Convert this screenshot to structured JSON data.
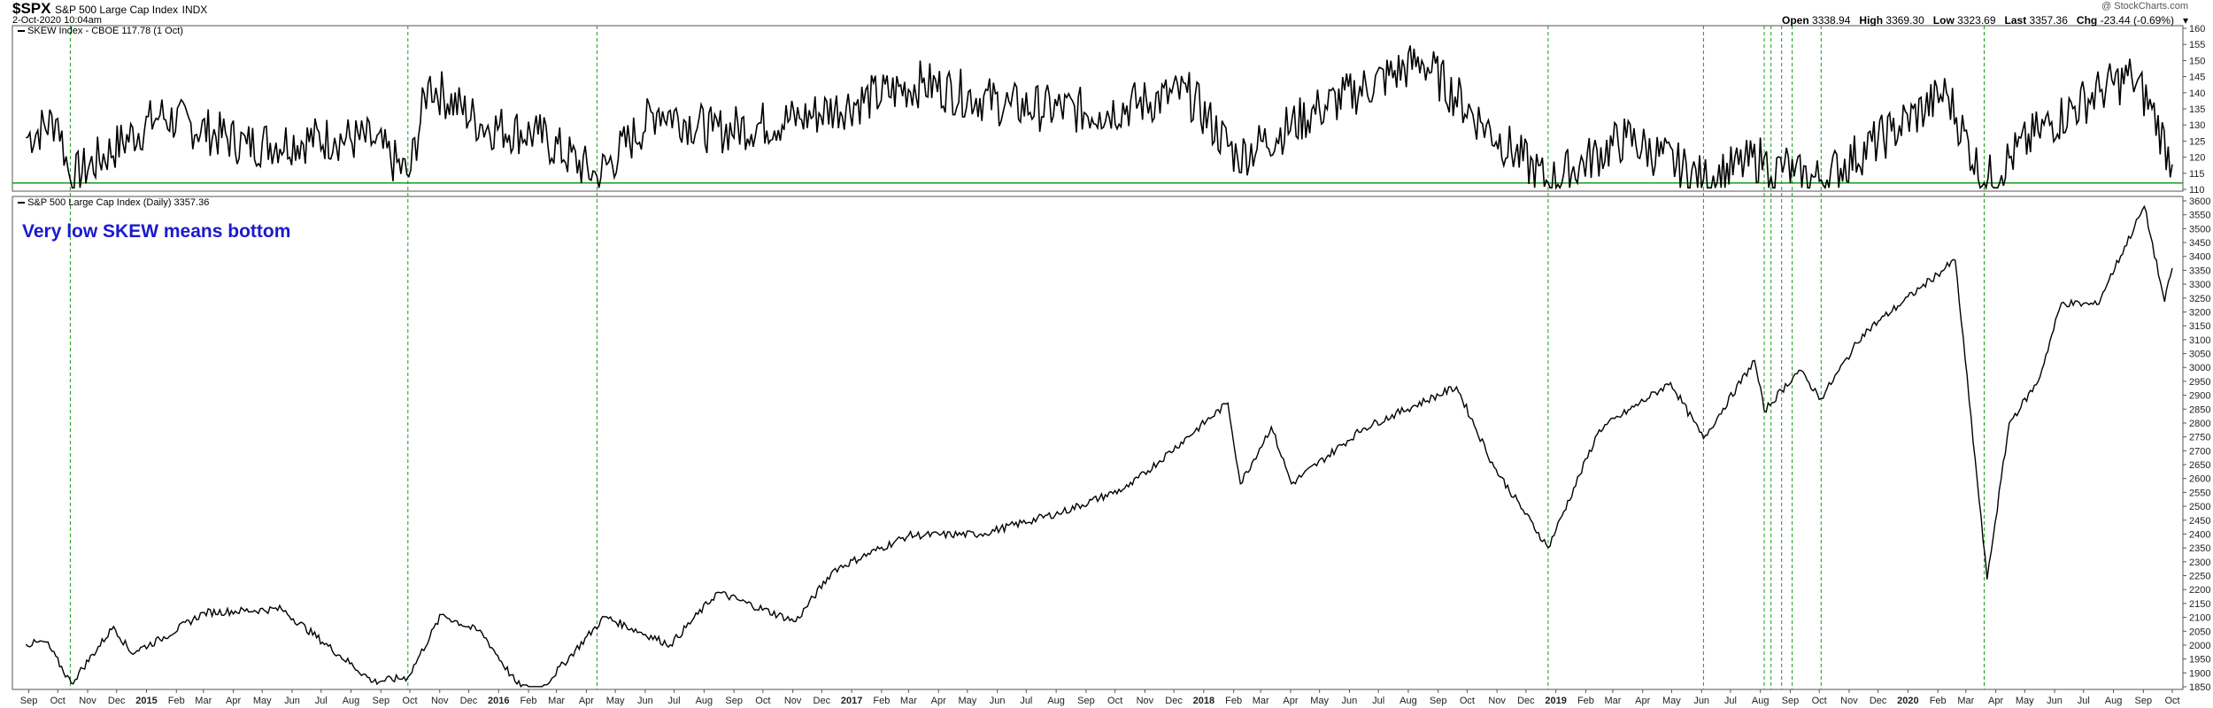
{
  "header": {
    "symbol": "$SPX",
    "name": "S&P 500 Large Cap Index",
    "exchange": "INDX",
    "datetime": "2-Oct-2020 10:04am",
    "credit": "@ StockCharts.com",
    "stats": [
      {
        "label": "Open",
        "value": "3338.94"
      },
      {
        "label": "High",
        "value": "3369.30"
      },
      {
        "label": "Low",
        "value": "3323.69"
      },
      {
        "label": "Last",
        "value": "3357.36"
      },
      {
        "label": "Chg",
        "value": "-23.44 (-0.69%)"
      }
    ],
    "chg_arrow": "down-triangle-icon"
  },
  "annotation": "Very low SKEW means bottom",
  "colors": {
    "price_line": "#000000",
    "marker_line": "#1a9a1a",
    "threshold_line": "#1a9a1a",
    "annotation": "#1a1acd"
  },
  "chart_data": [
    {
      "type": "line",
      "legend": "SKEW Index - CBOE 117.78 (1 Oct)",
      "ylim": [
        110,
        160
      ],
      "y_ticks": [
        110,
        115,
        120,
        125,
        130,
        135,
        140,
        145,
        150,
        155,
        160
      ],
      "threshold": 112,
      "series": [
        {
          "x": [
            "2014-08-29",
            "2014-10-01",
            "2014-10-14",
            "2015-01-15",
            "2015-04-15",
            "2015-07-15",
            "2015-08-24",
            "2015-09-30",
            "2015-10-20",
            "2015-12-15",
            "2016-02-11",
            "2016-04-12",
            "2016-06-15",
            "2016-08-10",
            "2016-11-08",
            "2017-03-15",
            "2017-06-15",
            "2017-09-15",
            "2017-12-15",
            "2018-02-05",
            "2018-05-01",
            "2018-08-15",
            "2018-10-15",
            "2018-12-24",
            "2019-03-15",
            "2019-06-03",
            "2019-08-05",
            "2019-08-12",
            "2019-08-26",
            "2019-09-05",
            "2019-10-03",
            "2019-12-15",
            "2020-02-10",
            "2020-03-20",
            "2020-05-15",
            "2020-07-20",
            "2020-08-20",
            "2020-09-10",
            "2020-10-01"
          ],
          "values": [
            126,
            132,
            113,
            133,
            124,
            126,
            125,
            114,
            143,
            130,
            127,
            114,
            135,
            128,
            132,
            143,
            136,
            134,
            140,
            120,
            135,
            150,
            131,
            112,
            126,
            113,
            120,
            114,
            118,
            114,
            113,
            128,
            140,
            112,
            128,
            141,
            145,
            135,
            117.78
          ]
        }
      ]
    },
    {
      "type": "line",
      "legend": "S&P 500 Large Cap Index (Daily) 3357.36",
      "ylim": [
        1850,
        3600
      ],
      "y_ticks": [
        1850,
        1900,
        1950,
        2000,
        2050,
        2100,
        2150,
        2200,
        2250,
        2300,
        2350,
        2400,
        2450,
        2500,
        2550,
        2600,
        2650,
        2700,
        2750,
        2800,
        2850,
        2900,
        2950,
        3000,
        3050,
        3100,
        3150,
        3200,
        3250,
        3300,
        3350,
        3400,
        3450,
        3500,
        3550,
        3600
      ],
      "series": [
        {
          "x": [
            "2014-08-29",
            "2014-09-19",
            "2014-10-15",
            "2014-11-28",
            "2014-12-16",
            "2015-01-15",
            "2015-03-02",
            "2015-05-21",
            "2015-08-24",
            "2015-09-29",
            "2015-11-03",
            "2015-12-15",
            "2016-01-20",
            "2016-02-11",
            "2016-04-20",
            "2016-06-27",
            "2016-08-15",
            "2016-11-04",
            "2016-12-13",
            "2017-03-01",
            "2017-05-15",
            "2017-08-08",
            "2017-10-15",
            "2018-01-26",
            "2018-02-08",
            "2018-03-12",
            "2018-04-02",
            "2018-06-15",
            "2018-09-20",
            "2018-10-29",
            "2018-12-24",
            "2019-02-15",
            "2019-04-30",
            "2019-06-03",
            "2019-07-26",
            "2019-08-05",
            "2019-09-10",
            "2019-10-03",
            "2019-11-15",
            "2020-01-15",
            "2020-02-19",
            "2020-03-23",
            "2020-04-15",
            "2020-05-15",
            "2020-06-08",
            "2020-07-15",
            "2020-09-02",
            "2020-09-23",
            "2020-10-01"
          ],
          "values": [
            2003,
            2011,
            1862,
            2067,
            1972,
            2020,
            2117,
            2130,
            1868,
            1884,
            2110,
            2043,
            1860,
            1829,
            2102,
            2001,
            2190,
            2085,
            2270,
            2395,
            2400,
            2480,
            2570,
            2872,
            2581,
            2786,
            2581,
            2780,
            2930,
            2641,
            2351,
            2775,
            2945,
            2744,
            3025,
            2844,
            2990,
            2888,
            3120,
            3290,
            3386,
            2237,
            2800,
            2950,
            3232,
            3226,
            3580,
            3237,
            3357.36
          ]
        }
      ]
    }
  ],
  "x_axis": {
    "labels": [
      {
        "t": "Sep",
        "d": "2014-09-01"
      },
      {
        "t": "Oct",
        "d": "2014-10-01"
      },
      {
        "t": "Nov",
        "d": "2014-11-01"
      },
      {
        "t": "Dec",
        "d": "2014-12-01"
      },
      {
        "t": "2015",
        "d": "2015-01-01",
        "year": true
      },
      {
        "t": "Feb",
        "d": "2015-02-01"
      },
      {
        "t": "Mar",
        "d": "2015-03-01"
      },
      {
        "t": "Apr",
        "d": "2015-04-01"
      },
      {
        "t": "May",
        "d": "2015-05-01"
      },
      {
        "t": "Jun",
        "d": "2015-06-01"
      },
      {
        "t": "Jul",
        "d": "2015-07-01"
      },
      {
        "t": "Aug",
        "d": "2015-08-01"
      },
      {
        "t": "Sep",
        "d": "2015-09-01"
      },
      {
        "t": "Oct",
        "d": "2015-10-01"
      },
      {
        "t": "Nov",
        "d": "2015-11-01"
      },
      {
        "t": "Dec",
        "d": "2015-12-01"
      },
      {
        "t": "2016",
        "d": "2016-01-01",
        "year": true
      },
      {
        "t": "Feb",
        "d": "2016-02-01"
      },
      {
        "t": "Mar",
        "d": "2016-03-01"
      },
      {
        "t": "Apr",
        "d": "2016-04-01"
      },
      {
        "t": "May",
        "d": "2016-05-01"
      },
      {
        "t": "Jun",
        "d": "2016-06-01"
      },
      {
        "t": "Jul",
        "d": "2016-07-01"
      },
      {
        "t": "Aug",
        "d": "2016-08-01"
      },
      {
        "t": "Sep",
        "d": "2016-09-01"
      },
      {
        "t": "Oct",
        "d": "2016-10-01"
      },
      {
        "t": "Nov",
        "d": "2016-11-01"
      },
      {
        "t": "Dec",
        "d": "2016-12-01"
      },
      {
        "t": "2017",
        "d": "2017-01-01",
        "year": true
      },
      {
        "t": "Feb",
        "d": "2017-02-01"
      },
      {
        "t": "Mar",
        "d": "2017-03-01"
      },
      {
        "t": "Apr",
        "d": "2017-04-01"
      },
      {
        "t": "May",
        "d": "2017-05-01"
      },
      {
        "t": "Jun",
        "d": "2017-06-01"
      },
      {
        "t": "Jul",
        "d": "2017-07-01"
      },
      {
        "t": "Aug",
        "d": "2017-08-01"
      },
      {
        "t": "Sep",
        "d": "2017-09-01"
      },
      {
        "t": "Oct",
        "d": "2017-10-01"
      },
      {
        "t": "Nov",
        "d": "2017-11-01"
      },
      {
        "t": "Dec",
        "d": "2017-12-01"
      },
      {
        "t": "2018",
        "d": "2018-01-01",
        "year": true
      },
      {
        "t": "Feb",
        "d": "2018-02-01"
      },
      {
        "t": "Mar",
        "d": "2018-03-01"
      },
      {
        "t": "Apr",
        "d": "2018-04-01"
      },
      {
        "t": "May",
        "d": "2018-05-01"
      },
      {
        "t": "Jun",
        "d": "2018-06-01"
      },
      {
        "t": "Jul",
        "d": "2018-07-01"
      },
      {
        "t": "Aug",
        "d": "2018-08-01"
      },
      {
        "t": "Sep",
        "d": "2018-09-01"
      },
      {
        "t": "Oct",
        "d": "2018-10-01"
      },
      {
        "t": "Nov",
        "d": "2018-11-01"
      },
      {
        "t": "Dec",
        "d": "2018-12-01"
      },
      {
        "t": "2019",
        "d": "2019-01-01",
        "year": true
      },
      {
        "t": "Feb",
        "d": "2019-02-01"
      },
      {
        "t": "Mar",
        "d": "2019-03-01"
      },
      {
        "t": "Apr",
        "d": "2019-04-01"
      },
      {
        "t": "May",
        "d": "2019-05-01"
      },
      {
        "t": "Jun",
        "d": "2019-06-01"
      },
      {
        "t": "Jul",
        "d": "2019-07-01"
      },
      {
        "t": "Aug",
        "d": "2019-08-01"
      },
      {
        "t": "Sep",
        "d": "2019-09-01"
      },
      {
        "t": "Oct",
        "d": "2019-10-01"
      },
      {
        "t": "Nov",
        "d": "2019-11-01"
      },
      {
        "t": "Dec",
        "d": "2019-12-01"
      },
      {
        "t": "2020",
        "d": "2020-01-01",
        "year": true
      },
      {
        "t": "Feb",
        "d": "2020-02-01"
      },
      {
        "t": "Mar",
        "d": "2020-03-01"
      },
      {
        "t": "Apr",
        "d": "2020-04-01"
      },
      {
        "t": "May",
        "d": "2020-05-01"
      },
      {
        "t": "Jun",
        "d": "2020-06-01"
      },
      {
        "t": "Jul",
        "d": "2020-07-01"
      },
      {
        "t": "Aug",
        "d": "2020-08-01"
      },
      {
        "t": "Sep",
        "d": "2020-09-01"
      },
      {
        "t": "Oct",
        "d": "2020-10-01"
      }
    ]
  },
  "markers": [
    "2014-10-14",
    "2015-09-29",
    "2016-04-12",
    "2018-12-24",
    "2019-06-03",
    "2019-08-05",
    "2019-08-12",
    "2019-08-23",
    "2019-09-03",
    "2019-10-03",
    "2020-03-20"
  ]
}
